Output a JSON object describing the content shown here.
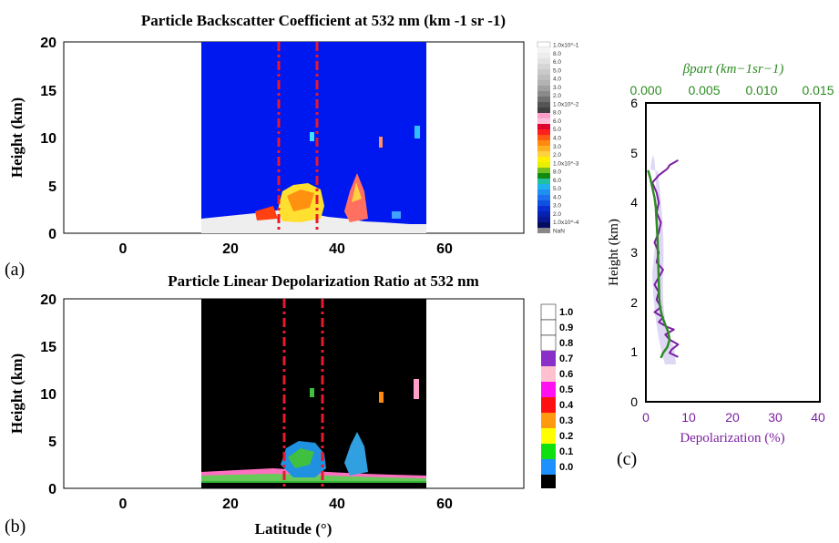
{
  "colors": {
    "blue_bg": "#0018f0",
    "black_bg": "#000000",
    "red_dash": "#e8192c",
    "purple": "#7b1fa2",
    "green": "#2e8b22"
  },
  "panel_a": {
    "label": "(a)",
    "title": "Particle Backscatter Coefficient at 532 nm (km -1 sr -1)",
    "ylabel": "Height (km)",
    "xticks": [
      "0",
      "20",
      "40",
      "60"
    ],
    "yticks": [
      "0",
      "5",
      "10",
      "15",
      "20"
    ],
    "colorbar_labels": [
      "1.0x10^-1",
      "8.0",
      "6.0",
      "5.0",
      "4.0",
      "3.0",
      "2.0",
      "1.0x10^-2",
      "8.0",
      "6.0",
      "5.0",
      "4.0",
      "3.0",
      "2.0",
      "1.0x10^-3",
      "8.0",
      "6.0",
      "5.0",
      "4.0",
      "3.0",
      "2.0",
      "1.0x10^-4",
      "NaN"
    ]
  },
  "panel_b": {
    "label": "(b)",
    "title": "Particle Linear Depolarization Ratio at 532 nm",
    "ylabel": "Height (km)",
    "xlabel": "Latitude (°)",
    "xticks": [
      "0",
      "20",
      "40",
      "60"
    ],
    "yticks": [
      "0",
      "5",
      "10",
      "15",
      "20"
    ],
    "colorbar_labels": [
      "1.0",
      "0.9",
      "0.8",
      "0.7",
      "0.6",
      "0.5",
      "0.4",
      "0.3",
      "0.2",
      "0.1",
      "0.0"
    ]
  },
  "panel_c": {
    "label": "(c)",
    "top_label": "βpart (km−1sr−1)",
    "left_label": "Height (km)",
    "bottom_label": "Depolarization (%)",
    "top_ticks": [
      "0.000",
      "0.005",
      "0.010",
      "0.015"
    ],
    "bottom_ticks": [
      "0",
      "10",
      "20",
      "30",
      "40"
    ],
    "left_ticks": [
      "0",
      "1",
      "2",
      "3",
      "4",
      "5",
      "6"
    ]
  },
  "chart_data": [
    {
      "type": "heatmap",
      "title": "Particle Backscatter Coefficient at 532 nm (km -1 sr -1)",
      "ylabel": "Height (km)",
      "xlim": [
        -10,
        75
      ],
      "ylim": [
        0,
        20
      ],
      "data_extent_latitude": [
        15,
        57
      ],
      "dashed_lines_latitude": [
        30,
        37
      ],
      "colorbar": "log scale 1.0x10^-4 to 1.0x10^-1"
    },
    {
      "type": "heatmap",
      "title": "Particle Linear Depolarization Ratio at 532 nm",
      "xlabel": "Latitude (°)",
      "ylabel": "Height (km)",
      "xlim": [
        -10,
        75
      ],
      "ylim": [
        0,
        20
      ],
      "data_extent_latitude": [
        15,
        57
      ],
      "dashed_lines_latitude": [
        30.5,
        38
      ],
      "colorbar": "0.0 to 1.0"
    },
    {
      "type": "line",
      "xlabel": "Depolarization (%)",
      "ylabel": "Height (km)",
      "xlim": [
        0,
        40
      ],
      "ylim": [
        0,
        6
      ],
      "top_axis_label": "βpart (km−1sr−1)",
      "top_axis_lim": [
        0,
        0.015
      ],
      "series": [
        {
          "color": "purple",
          "x": [
            7.5,
            5.5,
            5.0,
            3.0,
            1.5,
            2.5,
            3.0,
            2.5,
            3.5,
            3.0,
            2.0,
            3.0,
            2.5,
            4.0,
            3.0,
            2.0,
            3.0,
            2.5,
            3.5,
            2.0,
            4.0,
            3.0,
            5.0,
            6.5,
            4.5,
            5.5,
            7.5,
            6.0,
            5.5,
            7.5
          ],
          "y": [
            4.85,
            4.75,
            4.68,
            4.55,
            4.4,
            4.2,
            4.0,
            3.8,
            3.6,
            3.4,
            3.2,
            3.0,
            2.8,
            2.65,
            2.5,
            2.35,
            2.2,
            2.05,
            1.9,
            1.8,
            1.7,
            1.6,
            1.5,
            1.45,
            1.35,
            1.25,
            1.15,
            1.05,
            0.98,
            0.9
          ]
        },
        {
          "color": "green",
          "x": [
            0.5,
            1.0,
            1.5,
            2.0,
            2.3,
            2.5,
            2.7,
            2.8,
            2.9,
            3.0,
            3.1,
            3.3,
            3.8,
            4.5,
            5.2,
            5.5,
            5.0,
            4.0,
            3.5
          ],
          "y": [
            4.65,
            4.5,
            4.3,
            4.1,
            3.9,
            3.6,
            3.3,
            3.0,
            2.7,
            2.4,
            2.1,
            1.9,
            1.7,
            1.55,
            1.4,
            1.25,
            1.1,
            0.98,
            0.88
          ]
        }
      ]
    }
  ]
}
